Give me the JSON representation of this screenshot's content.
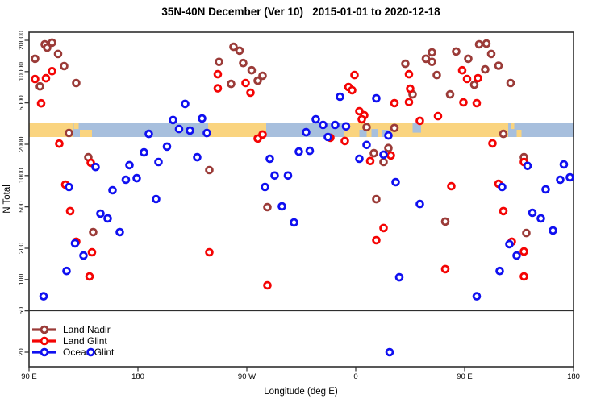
{
  "title": "35N-40N December (Ver 10)   2015-01-01 to 2020-12-18",
  "chart_data": {
    "type": "scatter",
    "title": "35N-40N December (Ver 10)   2015-01-01 to 2020-12-18",
    "xlabel": "Longitude (deg E)",
    "ylabel": "N Total",
    "x_axis": {
      "note": "longitude axis wraps; stored as unwrapped deg E from -270 to 180",
      "min": -270,
      "max": 180,
      "ticks": [
        {
          "lon": -270,
          "label": "90 E"
        },
        {
          "lon": -180,
          "label": "180"
        },
        {
          "lon": -90,
          "label": "90 W"
        },
        {
          "lon": 0,
          "label": "0"
        },
        {
          "lon": 90,
          "label": "90 E"
        },
        {
          "lon": 180,
          "label": "180"
        }
      ]
    },
    "y_axis": {
      "scale": "log",
      "min": 15,
      "max": 23000,
      "ticks": [
        20000,
        10000,
        5000,
        2000,
        1000,
        500,
        200,
        100,
        50,
        20
      ]
    },
    "legend_position": "bottom-left",
    "grid": false,
    "series": [
      {
        "name": "Land Nadir",
        "color": "#9B3B38",
        "points": [
          [
            -257,
            18300
          ],
          [
            -251,
            19000
          ],
          [
            -255,
            17000
          ],
          [
            -246,
            14800
          ],
          [
            -265,
            13300
          ],
          [
            -241,
            11300
          ],
          [
            -261,
            7200
          ],
          [
            -231,
            7760
          ],
          [
            -237,
            2570
          ],
          [
            -221,
            1500
          ],
          [
            -113,
            12400
          ],
          [
            -101,
            17300
          ],
          [
            -96,
            15900
          ],
          [
            -93,
            12100
          ],
          [
            -86,
            10300
          ],
          [
            -77,
            9120
          ],
          [
            -81,
            8180
          ],
          [
            -103,
            7620
          ],
          [
            9,
            2920
          ],
          [
            27,
            1840
          ],
          [
            32,
            2870
          ],
          [
            41,
            11900
          ],
          [
            47,
            6040
          ],
          [
            63,
            15300
          ],
          [
            58,
            13300
          ],
          [
            63,
            12400
          ],
          [
            83,
            15600
          ],
          [
            93,
            13300
          ],
          [
            102,
            18300
          ],
          [
            108,
            18600
          ],
          [
            112,
            14800
          ],
          [
            118,
            11400
          ],
          [
            107,
            10500
          ],
          [
            67,
            9270
          ],
          [
            78,
            6040
          ],
          [
            98,
            7480
          ],
          [
            128,
            7760
          ],
          [
            122,
            2520
          ],
          [
            139,
            1500
          ],
          [
            -217,
            286
          ],
          [
            -121,
            1130
          ],
          [
            -73,
            497
          ],
          [
            17,
            593
          ],
          [
            23,
            1350
          ],
          [
            74,
            361
          ],
          [
            141,
            280
          ],
          [
            15,
            1640
          ]
        ]
      },
      {
        "name": "Land Glint",
        "color": "#F40404",
        "points": [
          [
            -265,
            8470
          ],
          [
            -256,
            8630
          ],
          [
            -251,
            10100
          ],
          [
            -260,
            4950
          ],
          [
            -245,
            2030
          ],
          [
            -114,
            9440
          ],
          [
            -114,
            6900
          ],
          [
            -91,
            7760
          ],
          [
            -87,
            6270
          ],
          [
            -1,
            9270
          ],
          [
            -6,
            7100
          ],
          [
            -3,
            6610
          ],
          [
            3,
            4160
          ],
          [
            7,
            3800
          ],
          [
            5,
            3480
          ],
          [
            32,
            4970
          ],
          [
            44,
            9440
          ],
          [
            45,
            6840
          ],
          [
            44,
            5100
          ],
          [
            -81,
            2270
          ],
          [
            -77,
            2480
          ],
          [
            -21,
            2310
          ],
          [
            -9,
            2150
          ],
          [
            29,
            1560
          ],
          [
            12,
            1380
          ],
          [
            88,
            10300
          ],
          [
            92,
            8490
          ],
          [
            101,
            8650
          ],
          [
            89,
            5060
          ],
          [
            100,
            4970
          ],
          [
            68,
            3730
          ],
          [
            53,
            3360
          ],
          [
            113,
            2040
          ],
          [
            -240,
            820
          ],
          [
            -236,
            455
          ],
          [
            -231,
            231
          ],
          [
            -218,
            183
          ],
          [
            -220,
            107
          ],
          [
            -121,
            183
          ],
          [
            -219,
            1330
          ],
          [
            23,
            313
          ],
          [
            17,
            239
          ],
          [
            -73,
            88
          ],
          [
            79,
            791
          ],
          [
            118,
            834
          ],
          [
            122,
            455
          ],
          [
            129,
            231
          ],
          [
            139,
            186
          ],
          [
            74,
            126
          ],
          [
            139,
            107
          ],
          [
            139,
            1350
          ]
        ]
      },
      {
        "name": "Ocean Glint",
        "color": "#1010F0",
        "points": [
          [
            -141,
            4890
          ],
          [
            -151,
            3420
          ],
          [
            -146,
            2800
          ],
          [
            -137,
            2710
          ],
          [
            -127,
            3540
          ],
          [
            -123,
            2570
          ],
          [
            -171,
            2520
          ],
          [
            -175,
            1670
          ],
          [
            -156,
            1900
          ],
          [
            -131,
            1500
          ],
          [
            -163,
            1350
          ],
          [
            -187,
            1260
          ],
          [
            -215,
            1210
          ],
          [
            -13,
            5730
          ],
          [
            17,
            5530
          ],
          [
            -33,
            3480
          ],
          [
            -27,
            3070
          ],
          [
            -17,
            3070
          ],
          [
            -8,
            2970
          ],
          [
            -41,
            2610
          ],
          [
            -23,
            2350
          ],
          [
            -71,
            1450
          ],
          [
            -47,
            1700
          ],
          [
            -38,
            1730
          ],
          [
            3,
            1450
          ],
          [
            9,
            1970
          ],
          [
            23,
            1590
          ],
          [
            27,
            2430
          ],
          [
            142,
            1240
          ],
          [
            172,
            1280
          ],
          [
            -237,
            776
          ],
          [
            -201,
            723
          ],
          [
            -190,
            912
          ],
          [
            -181,
            944
          ],
          [
            -165,
            594
          ],
          [
            -211,
            431
          ],
          [
            -205,
            387
          ],
          [
            -195,
            286
          ],
          [
            -232,
            223
          ],
          [
            -225,
            170
          ],
          [
            -239,
            121
          ],
          [
            -258,
            69
          ],
          [
            -67,
            1000
          ],
          [
            -56,
            1000
          ],
          [
            -75,
            776
          ],
          [
            -61,
            506
          ],
          [
            -51,
            354
          ],
          [
            33,
            865
          ],
          [
            36,
            105
          ],
          [
            169,
            912
          ],
          [
            177,
            962
          ],
          [
            157,
            736
          ],
          [
            53,
            533
          ],
          [
            121,
            776
          ],
          [
            146,
            439
          ],
          [
            153,
            387
          ],
          [
            163,
            296
          ],
          [
            127,
            219
          ],
          [
            133,
            170
          ],
          [
            119,
            121
          ],
          [
            100,
            69
          ],
          [
            -219,
            20
          ],
          [
            28,
            20
          ]
        ]
      }
    ]
  },
  "map_band": {
    "description": "thin world-map strip (35N-40N) drawn across the plot near N=2700",
    "land_color": "#FAD47F",
    "ocean_color": "#A7BFDD",
    "base_segments": [
      {
        "from": -270,
        "to": -234,
        "type": "land"
      },
      {
        "from": -234,
        "to": -122,
        "type": "ocean"
      },
      {
        "from": -122,
        "to": -74,
        "type": "land"
      },
      {
        "from": -74,
        "to": -10,
        "type": "ocean"
      },
      {
        "from": -10,
        "to": 126,
        "type": "land"
      },
      {
        "from": 126,
        "to": 180,
        "type": "ocean"
      }
    ],
    "patches": [
      {
        "from": -233,
        "to": -229,
        "type": "land",
        "h": 0.45,
        "va": "top"
      },
      {
        "from": -228,
        "to": -218,
        "type": "land",
        "h": 0.5,
        "va": "bottom"
      },
      {
        "from": 3,
        "to": 9,
        "type": "ocean",
        "h": 0.5,
        "va": "bottom"
      },
      {
        "from": 13,
        "to": 18,
        "type": "ocean",
        "h": 0.55,
        "va": "bottom"
      },
      {
        "from": 22,
        "to": 27,
        "type": "ocean",
        "h": 0.5,
        "va": "bottom"
      },
      {
        "from": 47,
        "to": 54,
        "type": "ocean",
        "h": 0.7,
        "va": "top"
      },
      {
        "from": 128,
        "to": 131,
        "type": "land",
        "h": 0.45,
        "va": "top"
      },
      {
        "from": 133,
        "to": 137,
        "type": "land",
        "h": 0.5,
        "va": "bottom"
      }
    ]
  }
}
